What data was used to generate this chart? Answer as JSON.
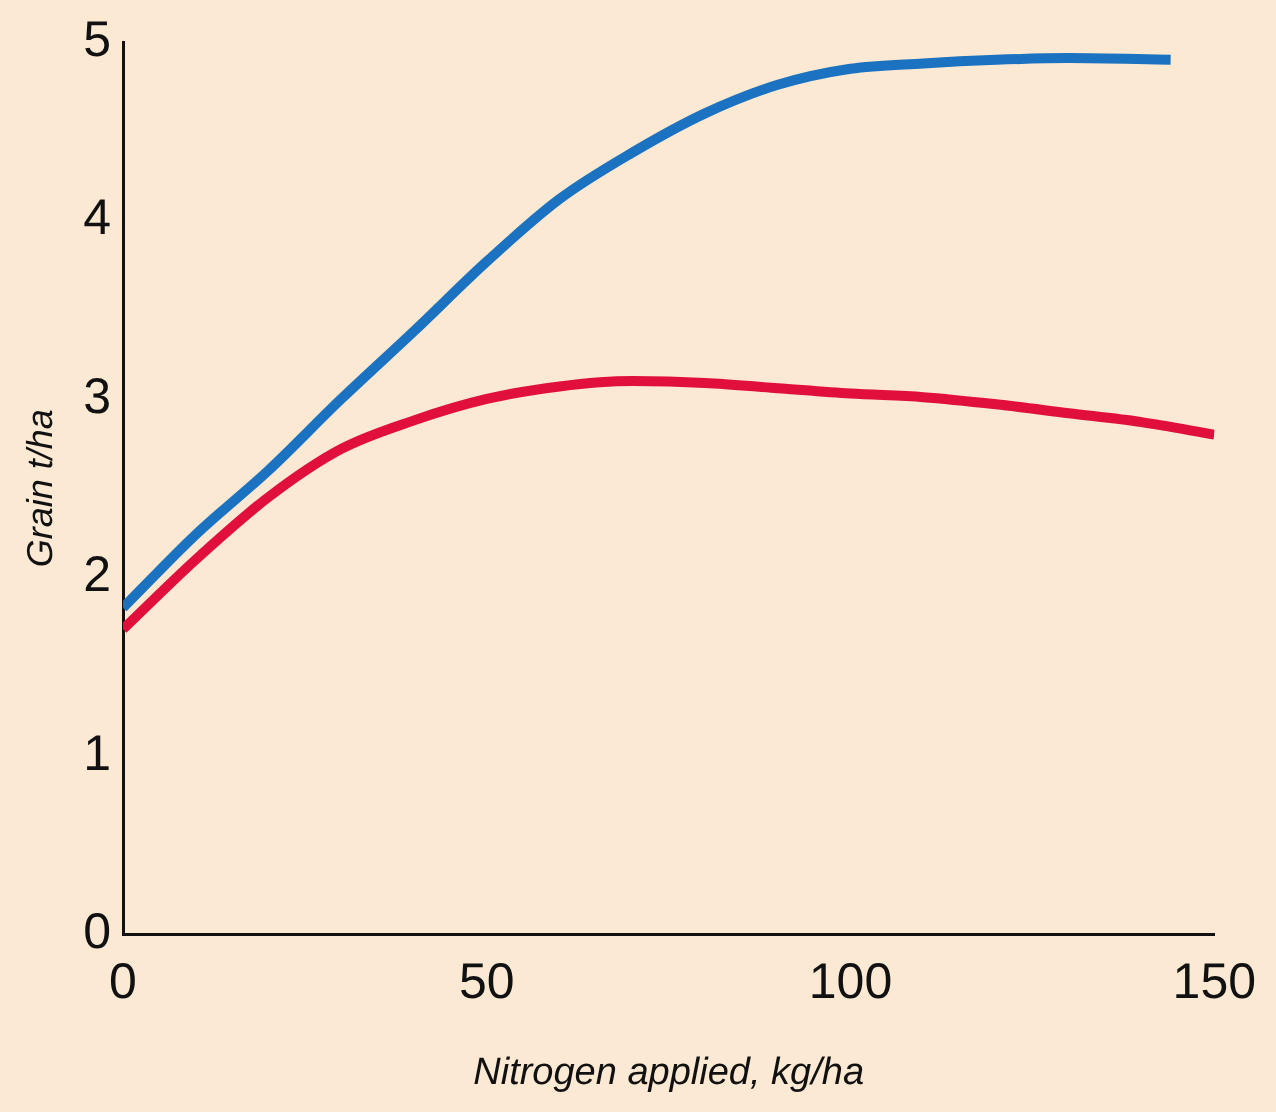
{
  "chart_data": {
    "type": "line",
    "xlabel": "Nitrogen applied, kg/ha",
    "ylabel": "Grain t/ha",
    "xlim": [
      0,
      150
    ],
    "xticks": [
      0,
      50,
      100,
      150
    ],
    "ylim": [
      0,
      5
    ],
    "yticks": [
      0,
      1,
      2,
      3,
      4,
      5
    ],
    "grid": false,
    "legend": false,
    "marker": "none",
    "line_style": "solid",
    "series": [
      {
        "color": "#1a72c0",
        "x": [
          0,
          10,
          20,
          30,
          40,
          50,
          60,
          70,
          80,
          90,
          100,
          110,
          120,
          130,
          144
        ],
        "values": [
          1.83,
          2.24,
          2.6,
          3.0,
          3.38,
          3.77,
          4.12,
          4.38,
          4.6,
          4.76,
          4.85,
          4.88,
          4.9,
          4.91,
          4.9
        ]
      },
      {
        "color": "#e0103a",
        "x": [
          0,
          10,
          20,
          30,
          40,
          50,
          60,
          70,
          80,
          90,
          100,
          110,
          120,
          130,
          140,
          150
        ],
        "values": [
          1.71,
          2.1,
          2.45,
          2.72,
          2.88,
          3.0,
          3.07,
          3.1,
          3.09,
          3.06,
          3.03,
          3.01,
          2.97,
          2.92,
          2.87,
          2.8
        ]
      }
    ]
  }
}
